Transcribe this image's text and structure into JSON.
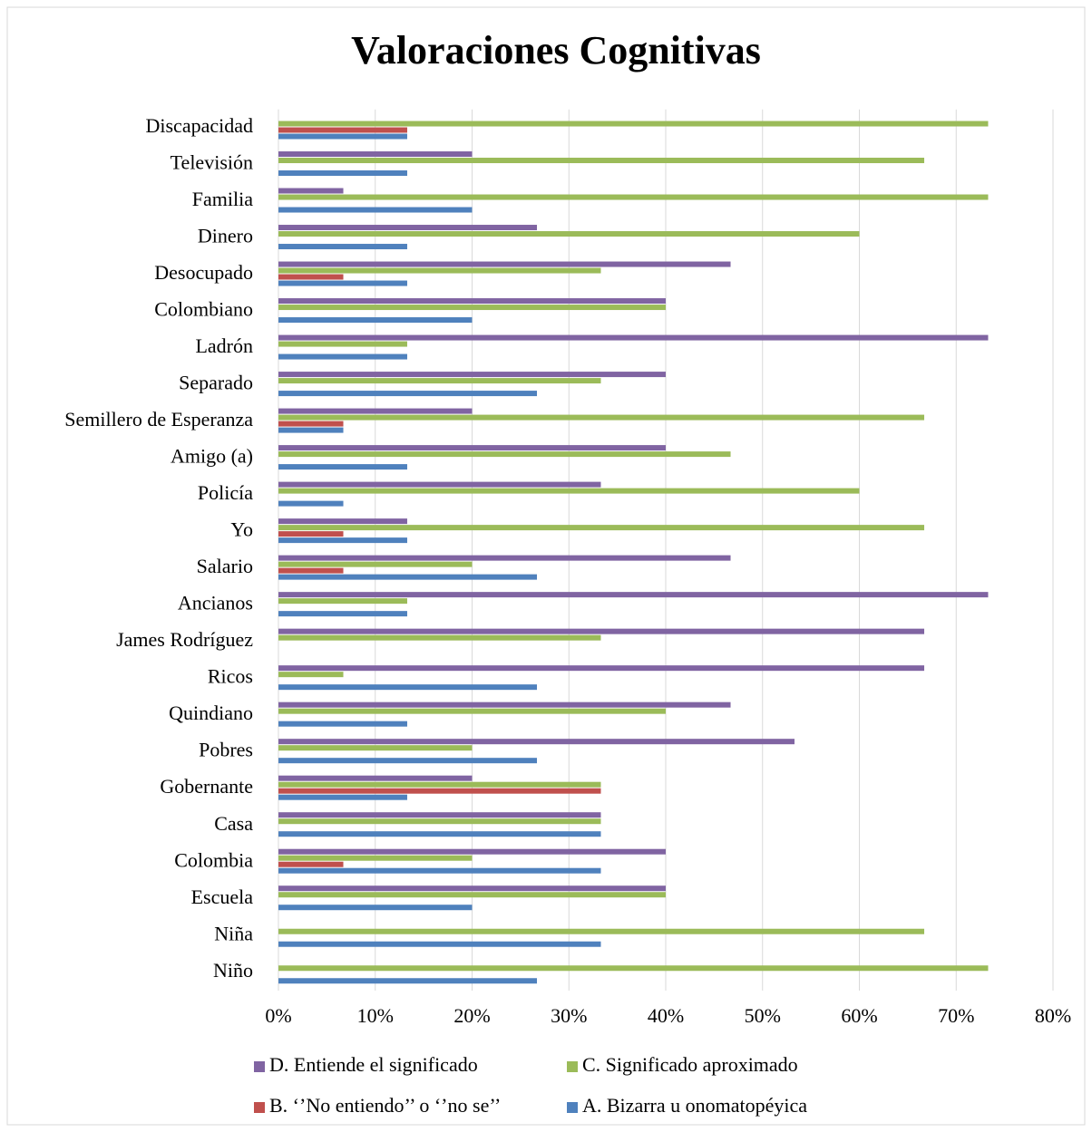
{
  "chart_data": {
    "type": "bar",
    "orientation": "horizontal",
    "title": "Valoraciones Cognitivas",
    "categories": [
      "Discapacidad",
      "Televisión",
      "Familia",
      "Dinero",
      "Desocupado",
      "Colombiano",
      "Ladrón",
      "Separado",
      "Semillero de Esperanza",
      "Amigo (a)",
      "Policía",
      "Yo",
      "Salario",
      "Ancianos",
      "James Rodríguez",
      "Ricos",
      "Quindiano",
      "Pobres",
      "Gobernante",
      "Casa",
      "Colombia",
      "Escuela",
      "Niña",
      "Niño"
    ],
    "series": [
      {
        "name": "D. Entiende el significado",
        "color": "#8064a2",
        "values": [
          0,
          20,
          6.7,
          26.7,
          46.7,
          40,
          73.3,
          40,
          20,
          40,
          33.3,
          13.3,
          46.7,
          73.3,
          66.7,
          66.7,
          46.7,
          53.3,
          20,
          33.3,
          40,
          40,
          0,
          0
        ]
      },
      {
        "name": "C. Significado aproximado",
        "color": "#9bbb59",
        "values": [
          73.3,
          66.7,
          73.3,
          60,
          33.3,
          40,
          13.3,
          33.3,
          66.7,
          46.7,
          60,
          66.7,
          20,
          13.3,
          33.3,
          6.7,
          40,
          20,
          33.3,
          33.3,
          20,
          40,
          66.7,
          73.3
        ]
      },
      {
        "name": "B. ‘’No entiendo’’ o ‘’no se’’",
        "color": "#c0504d",
        "values": [
          13.3,
          0,
          0,
          0,
          6.7,
          0,
          0,
          0,
          6.7,
          0,
          0,
          6.7,
          6.7,
          0,
          0,
          0,
          0,
          0,
          33.3,
          0,
          6.7,
          0,
          0,
          0
        ]
      },
      {
        "name": "A. Bizarra u onomatopéyica",
        "color": "#4f81bd",
        "values": [
          13.3,
          13.3,
          20,
          13.3,
          13.3,
          20,
          13.3,
          26.7,
          6.7,
          13.3,
          6.7,
          13.3,
          26.7,
          13.3,
          0,
          26.7,
          13.3,
          26.7,
          13.3,
          33.3,
          33.3,
          20,
          33.3,
          26.7
        ]
      }
    ],
    "xlim": [
      0,
      80
    ],
    "xticks": [
      {
        "value": 0,
        "label": "0%"
      },
      {
        "value": 10,
        "label": "10%"
      },
      {
        "value": 20,
        "label": "20%"
      },
      {
        "value": 30,
        "label": "30%"
      },
      {
        "value": 40,
        "label": "40%"
      },
      {
        "value": 50,
        "label": "50%"
      },
      {
        "value": 60,
        "label": "60%"
      },
      {
        "value": 70,
        "label": "70%"
      },
      {
        "value": 80,
        "label": "80%"
      }
    ],
    "grid": true,
    "legend": "bottom"
  }
}
